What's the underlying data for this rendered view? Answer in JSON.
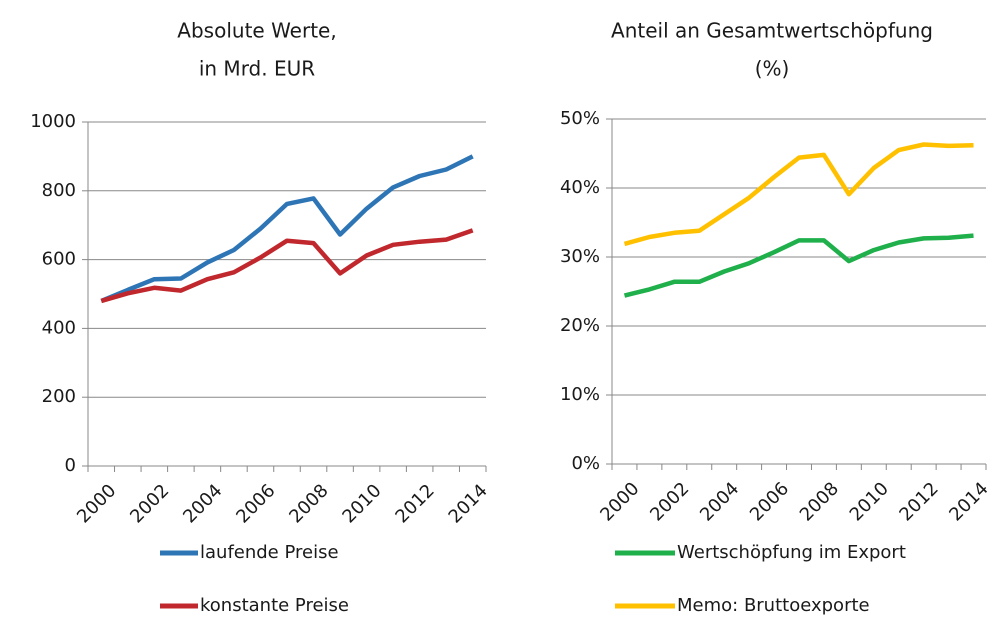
{
  "chart_data": [
    {
      "type": "line",
      "title": [
        "Absolute Werte,",
        "in Mrd. EUR"
      ],
      "categories": [
        "2000",
        null,
        "2002",
        null,
        "2004",
        null,
        "2006",
        null,
        "2008",
        null,
        "2010",
        null,
        "2012",
        null,
        "2014"
      ],
      "series": [
        {
          "name": "laufende Preise",
          "color": "#2e75b6",
          "values": [
            480,
            512,
            543,
            545,
            592,
            628,
            690,
            762,
            778,
            673,
            748,
            810,
            843,
            862,
            900
          ]
        },
        {
          "name": "konstante Preise",
          "color": "#c0282d",
          "values": [
            480,
            502,
            518,
            510,
            543,
            563,
            606,
            655,
            648,
            560,
            612,
            643,
            652,
            658,
            685
          ]
        }
      ],
      "ylim": [
        0,
        1000
      ],
      "yticks": [
        0,
        200,
        400,
        600,
        800,
        1000
      ],
      "grid": true
    },
    {
      "type": "line",
      "title": [
        "Anteil an Gesamtwertschöpfung",
        "(%)"
      ],
      "categories": [
        "2000",
        null,
        "2002",
        null,
        "2004",
        null,
        "2006",
        null,
        "2008",
        null,
        "2010",
        null,
        "2012",
        null,
        "2014"
      ],
      "series": [
        {
          "name": "Wertschöpfung im Export",
          "color": "#1fb04c",
          "values": [
            24.4,
            25.3,
            26.4,
            26.4,
            27.9,
            29.1,
            30.7,
            32.4,
            32.4,
            29.4,
            31.0,
            32.1,
            32.7,
            32.8,
            33.1
          ]
        },
        {
          "name": "Memo: Bruttoexporte",
          "color": "#ffc000",
          "values": [
            31.9,
            32.9,
            33.5,
            33.8,
            36.2,
            38.6,
            41.6,
            44.4,
            44.8,
            39.1,
            42.9,
            45.5,
            46.3,
            46.1,
            46.2
          ]
        }
      ],
      "ylim": [
        0,
        50
      ],
      "yticks": [
        {
          "value": 0,
          "label": "0%"
        },
        {
          "value": 10,
          "label": "10%"
        },
        {
          "value": 20,
          "label": "20%"
        },
        {
          "value": 30,
          "label": "30%"
        },
        {
          "value": 40,
          "label": "40%"
        },
        {
          "value": 50,
          "label": "50%"
        }
      ],
      "grid": true
    }
  ]
}
